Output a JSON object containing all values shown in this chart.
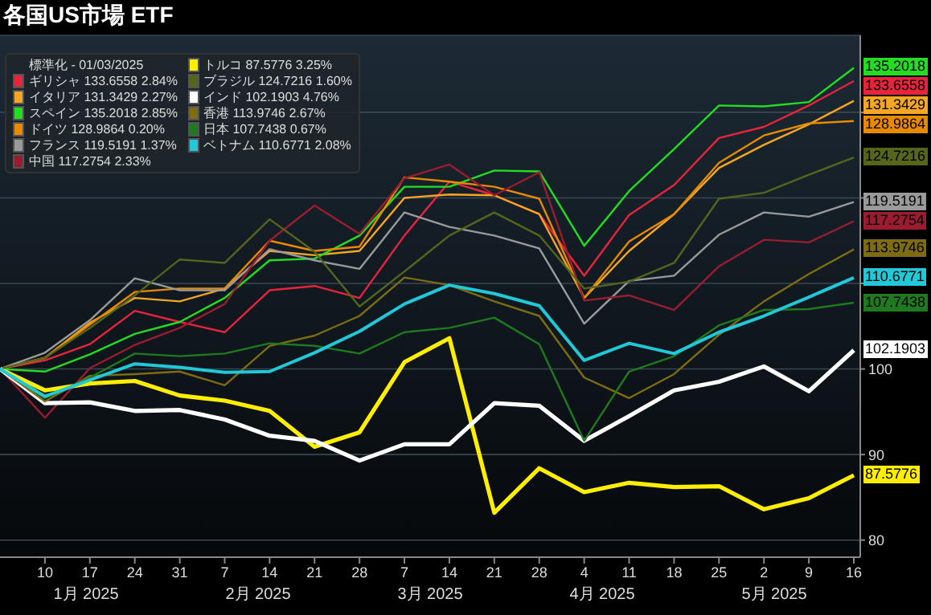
{
  "chart_data": {
    "type": "line",
    "title": "各国US市場 ETF",
    "legend_title": "標準化 - 01/03/2025",
    "legend": "top left",
    "grid": "y",
    "marker": "none",
    "line_style": "solid",
    "x": [
      "2025-01-03",
      "2025-01-10",
      "2025-01-17",
      "2025-01-24",
      "2025-01-31",
      "2025-02-07",
      "2025-02-14",
      "2025-02-21",
      "2025-02-28",
      "2025-03-07",
      "2025-03-14",
      "2025-03-21",
      "2025-03-28",
      "2025-04-04",
      "2025-04-11",
      "2025-04-18",
      "2025-04-25",
      "2025-05-02",
      "2025-05-09",
      "2025-05-16"
    ],
    "xlim": [
      "2025-01-03",
      "2025-05-17"
    ],
    "xticks": [
      {
        "value": "2025-01-10",
        "label": "10"
      },
      {
        "value": "2025-01-17",
        "label": "17"
      },
      {
        "value": "2025-01-24",
        "label": "24"
      },
      {
        "value": "2025-01-31",
        "label": "31"
      },
      {
        "value": "2025-02-07",
        "label": "7"
      },
      {
        "value": "2025-02-14",
        "label": "14"
      },
      {
        "value": "2025-02-21",
        "label": "21"
      },
      {
        "value": "2025-02-28",
        "label": "28"
      },
      {
        "value": "2025-03-07",
        "label": "7"
      },
      {
        "value": "2025-03-14",
        "label": "14"
      },
      {
        "value": "2025-03-21",
        "label": "21"
      },
      {
        "value": "2025-03-28",
        "label": "28"
      },
      {
        "value": "2025-04-04",
        "label": "4"
      },
      {
        "value": "2025-04-11",
        "label": "11"
      },
      {
        "value": "2025-04-18",
        "label": "18"
      },
      {
        "value": "2025-04-25",
        "label": "25"
      },
      {
        "value": "2025-05-02",
        "label": "2"
      },
      {
        "value": "2025-05-09",
        "label": "9"
      },
      {
        "value": "2025-05-16",
        "label": "16"
      }
    ],
    "ylim": [
      78,
      139
    ],
    "yticks": [
      80,
      90,
      100,
      {
        "value": 110,
        "label": null
      },
      {
        "value": 120,
        "label": null
      },
      {
        "value": 130,
        "label": null
      }
    ],
    "annotations": [
      "1月 2025",
      "2月 2025",
      "3月 2025",
      "4月 2025",
      "5月 2025"
    ],
    "series": [
      {
        "name": "ギリシャ 133.6558 2.84%",
        "color": "#e8243c",
        "values": [
          100,
          101.0,
          102.9,
          106.8,
          105.5,
          104.3,
          109.2,
          109.7,
          108.3,
          115.6,
          121.9,
          120.3,
          118.1,
          110.9,
          118.0,
          121.5,
          127.0,
          128.3,
          130.8,
          133.6558
        ],
        "value_labels": [
          null,
          null,
          null,
          null,
          null,
          null,
          null,
          null,
          null,
          null,
          null,
          null,
          null,
          null,
          null,
          null,
          null,
          null,
          null,
          "133.6558"
        ]
      },
      {
        "name": "イタリア 131.3429 2.27%",
        "color": "#f5a623",
        "values": [
          100,
          101.3,
          105.4,
          108.3,
          107.9,
          109.4,
          113.8,
          113.3,
          113.8,
          120.0,
          120.4,
          120.3,
          118.1,
          108.3,
          113.8,
          118.1,
          123.5,
          126.2,
          128.6,
          131.3429
        ],
        "value_labels": [
          null,
          null,
          null,
          null,
          null,
          null,
          null,
          null,
          null,
          null,
          null,
          null,
          null,
          null,
          null,
          null,
          null,
          null,
          null,
          "131.3429"
        ]
      },
      {
        "name": "スペイン 135.2018 2.85%",
        "color": "#22dd22",
        "values": [
          100,
          99.7,
          101.7,
          104.1,
          105.5,
          108.3,
          112.7,
          112.9,
          115.6,
          121.3,
          121.3,
          123.2,
          123.1,
          114.4,
          120.8,
          125.7,
          130.8,
          130.7,
          131.2,
          135.2018
        ],
        "value_labels": [
          null,
          null,
          null,
          null,
          null,
          null,
          null,
          null,
          null,
          null,
          null,
          null,
          null,
          null,
          null,
          null,
          null,
          null,
          null,
          "135.2018"
        ]
      },
      {
        "name": "ドイツ 128.9864 0.20%",
        "color": "#e88a00",
        "values": [
          100,
          101.3,
          105.2,
          109.0,
          109.4,
          109.4,
          115.0,
          113.8,
          114.3,
          122.4,
          121.9,
          121.3,
          119.9,
          108.3,
          114.9,
          118.1,
          124.1,
          127.3,
          128.7,
          128.9864
        ],
        "value_labels": [
          null,
          null,
          null,
          null,
          null,
          null,
          null,
          null,
          null,
          null,
          null,
          null,
          null,
          null,
          null,
          null,
          null,
          null,
          null,
          "128.9864"
        ]
      },
      {
        "name": "フランス 119.5191 1.37%",
        "color": "#9a9a9a",
        "values": [
          100,
          101.9,
          105.7,
          110.6,
          109.2,
          109.2,
          114.0,
          112.7,
          111.7,
          118.3,
          116.6,
          115.6,
          114.1,
          105.3,
          110.3,
          110.9,
          115.7,
          118.3,
          117.8,
          119.5191
        ],
        "value_labels": [
          null,
          null,
          null,
          null,
          null,
          null,
          null,
          null,
          null,
          null,
          null,
          null,
          null,
          null,
          null,
          null,
          null,
          null,
          null,
          "119.5191"
        ]
      },
      {
        "name": "中国 117.2754 2.33%",
        "color": "#9b1c30",
        "values": [
          100,
          94.3,
          100.1,
          102.8,
          104.8,
          107.6,
          115.0,
          119.1,
          115.8,
          122.3,
          123.9,
          120.3,
          123.0,
          108.0,
          108.6,
          106.9,
          112.0,
          115.1,
          114.8,
          117.2754
        ],
        "value_labels": [
          null,
          null,
          null,
          null,
          null,
          null,
          null,
          null,
          null,
          null,
          null,
          null,
          null,
          null,
          null,
          null,
          null,
          null,
          null,
          "117.2754"
        ]
      },
      {
        "name": "トルコ 87.5776 3.25%",
        "color": "#ffee00",
        "values": [
          100,
          97.5,
          98.3,
          98.6,
          96.9,
          96.3,
          95.1,
          90.9,
          92.6,
          100.8,
          103.6,
          83.2,
          88.4,
          85.6,
          86.7,
          86.2,
          86.3,
          83.6,
          84.9,
          87.5776
        ],
        "value_labels": [
          null,
          null,
          null,
          null,
          null,
          null,
          null,
          null,
          null,
          null,
          null,
          null,
          null,
          null,
          null,
          null,
          null,
          null,
          null,
          "87.5776"
        ]
      },
      {
        "name": "ブラジル 124.7216 1.60%",
        "color": "#55661c",
        "values": [
          100,
          101.3,
          104.8,
          108.6,
          112.8,
          112.4,
          117.5,
          113.7,
          107.3,
          111.4,
          115.6,
          118.3,
          115.6,
          109.4,
          110.2,
          112.4,
          119.9,
          120.6,
          122.7,
          124.7216
        ],
        "value_labels": [
          null,
          null,
          null,
          null,
          null,
          null,
          null,
          null,
          null,
          null,
          null,
          null,
          null,
          null,
          null,
          null,
          null,
          null,
          null,
          "124.7216"
        ]
      },
      {
        "name": "インド 102.1903 4.76%",
        "color": "#ffffff",
        "values": [
          100,
          96.0,
          96.1,
          95.1,
          95.2,
          94.1,
          92.2,
          91.6,
          89.3,
          91.2,
          91.2,
          96.0,
          95.7,
          91.6,
          94.5,
          97.5,
          98.5,
          100.3,
          97.4,
          102.1903
        ],
        "value_labels": [
          null,
          null,
          null,
          null,
          null,
          null,
          null,
          null,
          null,
          null,
          null,
          null,
          null,
          null,
          null,
          null,
          null,
          null,
          null,
          "102.1903"
        ]
      },
      {
        "name": "香港 113.9746 2.67%",
        "color": "#7d6c12",
        "values": [
          100,
          96.2,
          99.2,
          99.4,
          99.7,
          98.1,
          102.7,
          103.9,
          106.2,
          110.7,
          109.8,
          107.9,
          106.2,
          99.0,
          96.6,
          99.4,
          104.0,
          107.9,
          111.1,
          113.9746
        ],
        "value_labels": [
          null,
          null,
          null,
          null,
          null,
          null,
          null,
          null,
          null,
          null,
          null,
          null,
          null,
          null,
          null,
          null,
          null,
          null,
          null,
          "113.9746"
        ]
      },
      {
        "name": "日本 107.7438 0.67%",
        "color": "#1f7a1f",
        "values": [
          100,
          96.6,
          99.0,
          101.8,
          101.5,
          101.8,
          103.0,
          102.7,
          101.8,
          104.3,
          104.8,
          106.0,
          102.9,
          91.6,
          99.7,
          101.5,
          105.1,
          106.9,
          107.0,
          107.7438
        ],
        "value_labels": [
          null,
          null,
          null,
          null,
          null,
          null,
          null,
          null,
          null,
          null,
          null,
          null,
          null,
          null,
          null,
          null,
          null,
          null,
          null,
          "107.7438"
        ]
      },
      {
        "name": "ベトナム 110.6771 2.08%",
        "color": "#20c8d8",
        "values": [
          100,
          96.8,
          98.7,
          100.6,
          100.2,
          99.6,
          99.7,
          101.9,
          104.4,
          107.6,
          109.8,
          108.8,
          107.4,
          101.0,
          103.0,
          101.8,
          104.3,
          106.2,
          108.4,
          110.6771
        ],
        "value_labels": [
          null,
          null,
          null,
          null,
          null,
          null,
          null,
          null,
          null,
          null,
          null,
          null,
          null,
          null,
          null,
          null,
          null,
          null,
          null,
          "110.6771"
        ]
      }
    ]
  }
}
